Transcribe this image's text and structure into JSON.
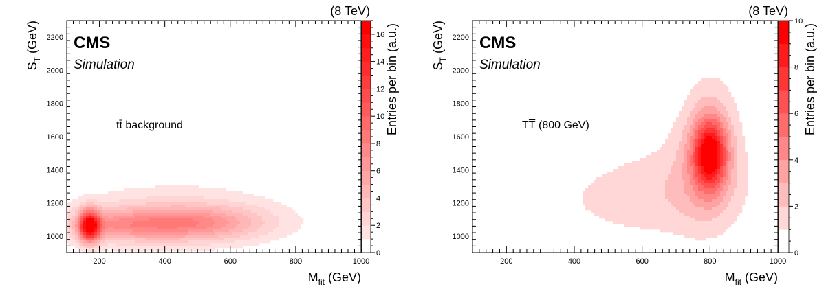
{
  "colors": {
    "max": "#ff0000",
    "min": "#ffffff",
    "frame": "#000000"
  },
  "chart_data": [
    {
      "type": "heatmap",
      "energy_label": "(8 TeV)",
      "cms_label": "CMS",
      "sim_label": "Simulation",
      "process_label": "tt̄ background",
      "xlabel": {
        "main": "M",
        "sub": "fit",
        "unit": " (GeV)"
      },
      "ylabel": {
        "main": "S",
        "sub": "T",
        "unit": " (GeV)"
      },
      "zlabel": "Entries per bin (a.u.)",
      "xlim": [
        100,
        1000
      ],
      "ylim": [
        900,
        2300
      ],
      "zlim": [
        0,
        17
      ],
      "xticks": [
        200,
        400,
        600,
        800,
        1000
      ],
      "yticks": [
        1000,
        1200,
        1400,
        1600,
        1800,
        2000,
        2200
      ],
      "zticks": [
        0,
        2,
        4,
        6,
        8,
        10,
        12,
        14,
        16
      ],
      "contour_levels": 17,
      "blobs": [
        {
          "x": 170,
          "y": 1060,
          "sx": 22,
          "sy": 65,
          "a": 15
        },
        {
          "x": 440,
          "y": 1075,
          "sx": 140,
          "sy": 65,
          "a": 4.5
        },
        {
          "x": 330,
          "y": 1085,
          "sx": 200,
          "sy": 110,
          "a": 2.2
        },
        {
          "x": 580,
          "y": 1080,
          "sx": 150,
          "sy": 85,
          "a": 2
        },
        {
          "x": 240,
          "y": 1060,
          "sx": 90,
          "sy": 60,
          "a": 3
        },
        {
          "x": 470,
          "y": 1190,
          "sx": 230,
          "sy": 150,
          "a": 0.9
        }
      ]
    },
    {
      "type": "heatmap",
      "energy_label": "(8 TeV)",
      "cms_label": "CMS",
      "sim_label": "Simulation",
      "process_label": "TT̅ (800 GeV)",
      "xlabel": {
        "main": "M",
        "sub": "fit",
        "unit": " (GeV)"
      },
      "ylabel": {
        "main": "S",
        "sub": "T",
        "unit": " (GeV)"
      },
      "zlabel": "Entries per bin (a.u.)",
      "xlim": [
        100,
        1000
      ],
      "ylim": [
        900,
        2300
      ],
      "zlim": [
        0,
        10
      ],
      "xticks": [
        200,
        400,
        600,
        800,
        1000
      ],
      "yticks": [
        1000,
        1200,
        1400,
        1600,
        1800,
        2000,
        2200
      ],
      "zticks": [
        0,
        2,
        4,
        6,
        8,
        10
      ],
      "contour_levels": 10,
      "blobs": [
        {
          "x": 800,
          "y": 1500,
          "sx": 35,
          "sy": 150,
          "a": 8
        },
        {
          "x": 790,
          "y": 1440,
          "sx": 65,
          "sy": 260,
          "a": 2.2
        },
        {
          "x": 700,
          "y": 1300,
          "sx": 170,
          "sy": 230,
          "a": 1.2
        },
        {
          "x": 520,
          "y": 1210,
          "sx": 190,
          "sy": 160,
          "a": 0.8
        },
        {
          "x": 810,
          "y": 1850,
          "sx": 70,
          "sy": 230,
          "a": 0.7
        }
      ]
    }
  ]
}
